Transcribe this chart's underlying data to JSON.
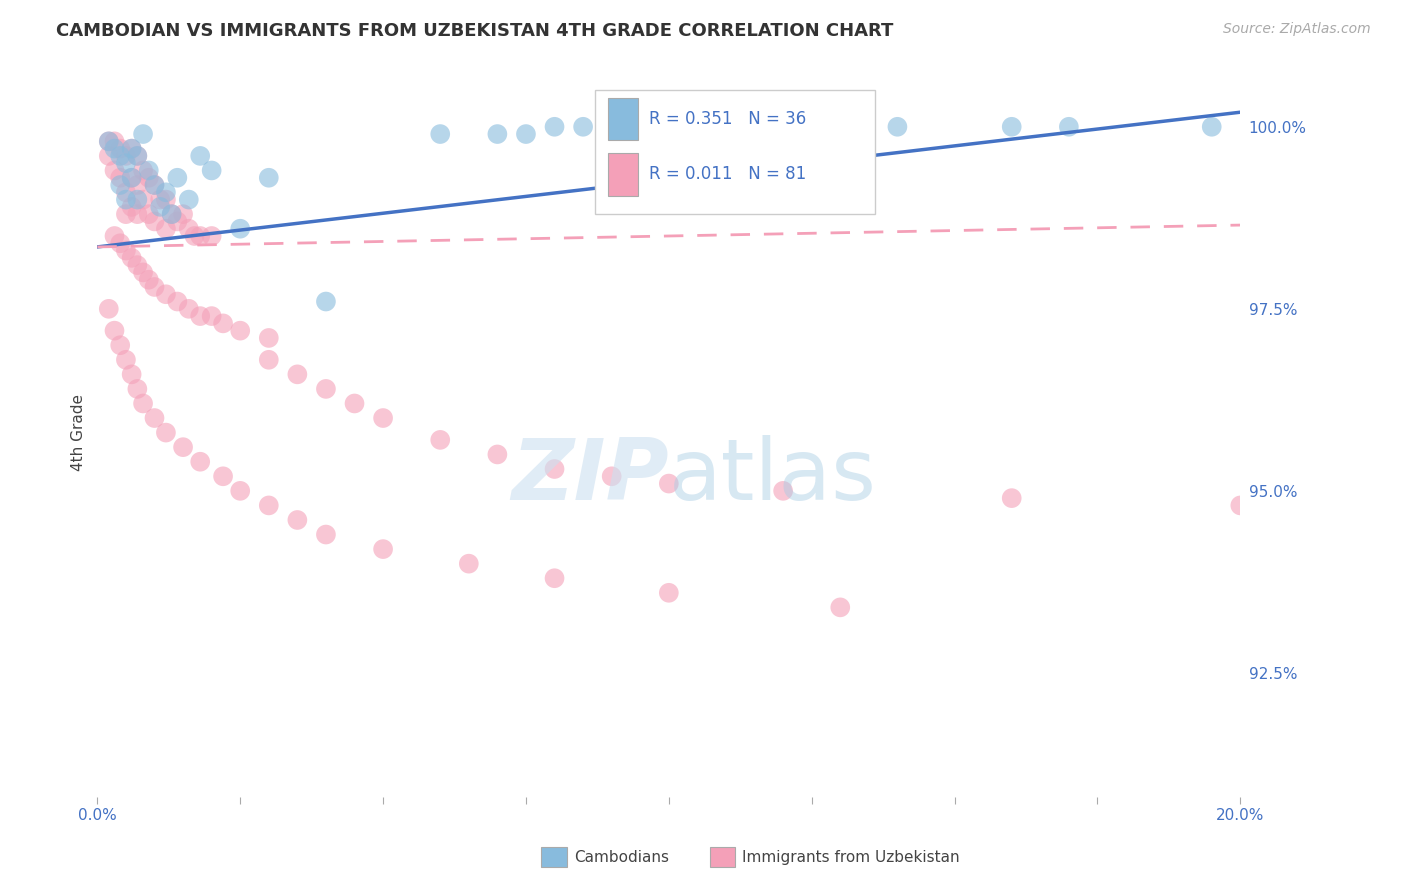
{
  "title": "CAMBODIAN VS IMMIGRANTS FROM UZBEKISTAN 4TH GRADE CORRELATION CHART",
  "source": "Source: ZipAtlas.com",
  "ylabel": "4th Grade",
  "ytick_labels": [
    "100.0%",
    "97.5%",
    "95.0%",
    "92.5%"
  ],
  "ytick_values": [
    1.0,
    0.975,
    0.95,
    0.925
  ],
  "xmin": 0.0,
  "xmax": 0.2,
  "ymin": 0.908,
  "ymax": 1.008,
  "legend_r1": "R = 0.351",
  "legend_n1": "N = 36",
  "legend_r2": "R = 0.011",
  "legend_n2": "N = 81",
  "color_blue": "#88bbdd",
  "color_pink": "#f4a0b8",
  "color_blue_line": "#4472c4",
  "color_pink_line": "#f4a0b8",
  "cam_x": [
    0.002,
    0.003,
    0.004,
    0.004,
    0.005,
    0.005,
    0.006,
    0.006,
    0.007,
    0.007,
    0.008,
    0.009,
    0.01,
    0.011,
    0.012,
    0.013,
    0.014,
    0.016,
    0.018,
    0.02,
    0.025,
    0.03,
    0.04,
    0.06,
    0.07,
    0.075,
    0.08,
    0.085,
    0.09,
    0.095,
    0.1,
    0.12,
    0.14,
    0.16,
    0.17,
    0.195
  ],
  "cam_y": [
    0.998,
    0.997,
    0.996,
    0.992,
    0.995,
    0.99,
    0.997,
    0.993,
    0.996,
    0.99,
    0.999,
    0.994,
    0.992,
    0.989,
    0.991,
    0.988,
    0.993,
    0.99,
    0.996,
    0.994,
    0.986,
    0.993,
    0.976,
    0.999,
    0.999,
    0.999,
    1.0,
    1.0,
    1.0,
    1.0,
    1.0,
    1.0,
    1.0,
    1.0,
    1.0,
    1.0
  ],
  "uzb_x": [
    0.002,
    0.002,
    0.003,
    0.003,
    0.004,
    0.004,
    0.005,
    0.005,
    0.005,
    0.006,
    0.006,
    0.006,
    0.007,
    0.007,
    0.007,
    0.008,
    0.008,
    0.009,
    0.009,
    0.01,
    0.01,
    0.011,
    0.012,
    0.012,
    0.013,
    0.014,
    0.015,
    0.016,
    0.017,
    0.018,
    0.02,
    0.003,
    0.004,
    0.005,
    0.006,
    0.007,
    0.008,
    0.009,
    0.01,
    0.012,
    0.014,
    0.016,
    0.018,
    0.02,
    0.022,
    0.025,
    0.03,
    0.03,
    0.035,
    0.04,
    0.045,
    0.05,
    0.06,
    0.07,
    0.08,
    0.09,
    0.1,
    0.12,
    0.16,
    0.2,
    0.002,
    0.003,
    0.004,
    0.005,
    0.006,
    0.007,
    0.008,
    0.01,
    0.012,
    0.015,
    0.018,
    0.022,
    0.025,
    0.03,
    0.035,
    0.04,
    0.05,
    0.065,
    0.08,
    0.1,
    0.13
  ],
  "uzb_y": [
    0.998,
    0.996,
    0.998,
    0.994,
    0.997,
    0.993,
    0.996,
    0.991,
    0.988,
    0.997,
    0.993,
    0.989,
    0.996,
    0.992,
    0.988,
    0.994,
    0.99,
    0.993,
    0.988,
    0.992,
    0.987,
    0.99,
    0.99,
    0.986,
    0.988,
    0.987,
    0.988,
    0.986,
    0.985,
    0.985,
    0.985,
    0.985,
    0.984,
    0.983,
    0.982,
    0.981,
    0.98,
    0.979,
    0.978,
    0.977,
    0.976,
    0.975,
    0.974,
    0.974,
    0.973,
    0.972,
    0.971,
    0.968,
    0.966,
    0.964,
    0.962,
    0.96,
    0.957,
    0.955,
    0.953,
    0.952,
    0.951,
    0.95,
    0.949,
    0.948,
    0.975,
    0.972,
    0.97,
    0.968,
    0.966,
    0.964,
    0.962,
    0.96,
    0.958,
    0.956,
    0.954,
    0.952,
    0.95,
    0.948,
    0.946,
    0.944,
    0.942,
    0.94,
    0.938,
    0.936,
    0.934
  ],
  "cam_trend_x": [
    0.0,
    0.2
  ],
  "cam_trend_y": [
    0.9835,
    1.002
  ],
  "uzb_trend_x": [
    0.0,
    0.2
  ],
  "uzb_trend_y": [
    0.9835,
    0.9865
  ]
}
